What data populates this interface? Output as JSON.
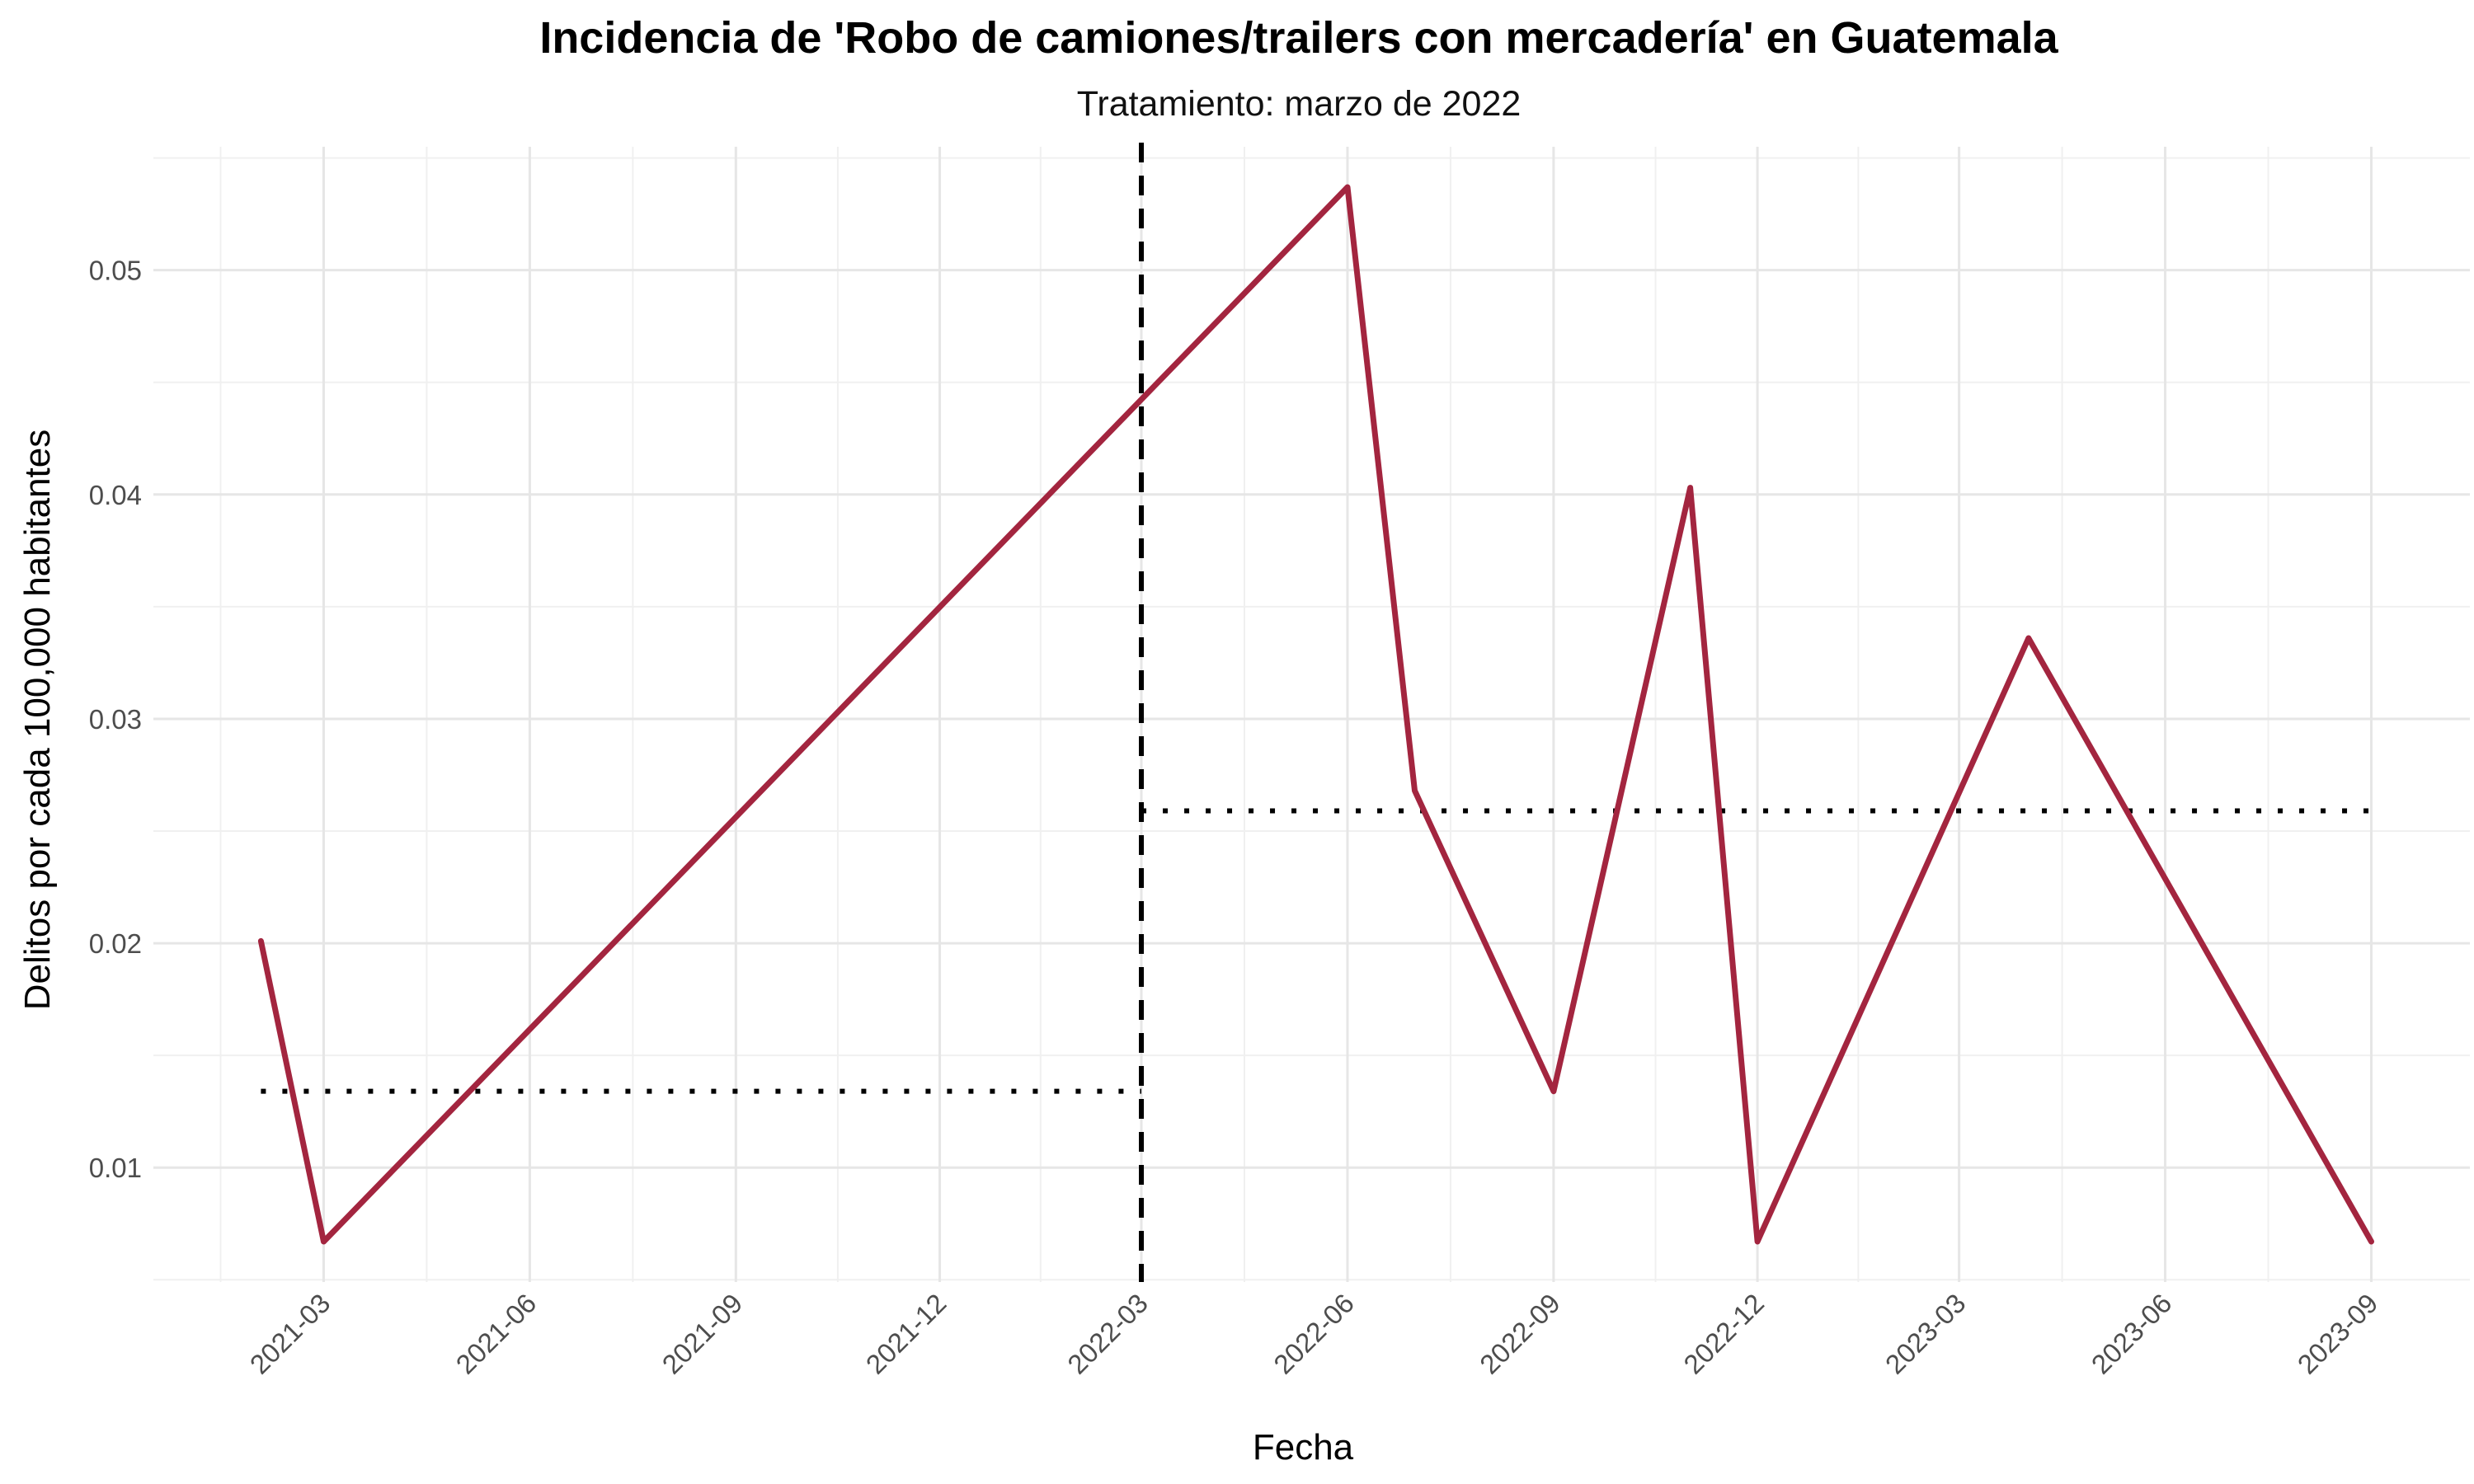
{
  "chart_data": {
    "type": "line",
    "title": "Incidencia de 'Robo de camiones/trailers con mercadería' en Guatemala",
    "subtitle": "Tratamiento: marzo de 2022",
    "xlabel": "Fecha",
    "ylabel": "Delitos por cada 100,000 habitantes",
    "x_ticks": [
      "2021-03",
      "2021-06",
      "2021-09",
      "2021-12",
      "2022-03",
      "2022-06",
      "2022-09",
      "2022-12",
      "2023-03",
      "2023-06",
      "2023-09"
    ],
    "y_ticks": [
      "0.01",
      "0.02",
      "0.03",
      "0.04",
      "0.05"
    ],
    "ylim": [
      0.0049,
      0.0555
    ],
    "xlim": [
      "2020-12-15",
      "2023-10-15"
    ],
    "grid": true,
    "series": [
      {
        "color": "#A3253F",
        "points": [
          {
            "x": "2021-02-01",
            "y": 0.0201
          },
          {
            "x": "2021-03-01",
            "y": 0.0067
          },
          {
            "x": "2022-06-01",
            "y": 0.0537
          },
          {
            "x": "2022-07-01",
            "y": 0.0268
          },
          {
            "x": "2022-09-01",
            "y": 0.0134
          },
          {
            "x": "2022-11-01",
            "y": 0.0403
          },
          {
            "x": "2022-12-01",
            "y": 0.0067
          },
          {
            "x": "2023-04-01",
            "y": 0.0336
          },
          {
            "x": "2023-09-01",
            "y": 0.0067
          }
        ]
      }
    ],
    "reference_lines": [
      {
        "type": "vertical",
        "x": "2022-03-01",
        "style": "dashed",
        "color": "#000000"
      },
      {
        "type": "horizontal",
        "y": 0.0134,
        "x_start": "2021-02-01",
        "x_end": "2022-03-01",
        "style": "dotted",
        "color": "#000000"
      },
      {
        "type": "horizontal",
        "y": 0.0259,
        "x_start": "2022-03-01",
        "x_end": "2023-09-01",
        "style": "dotted",
        "color": "#000000"
      }
    ]
  }
}
